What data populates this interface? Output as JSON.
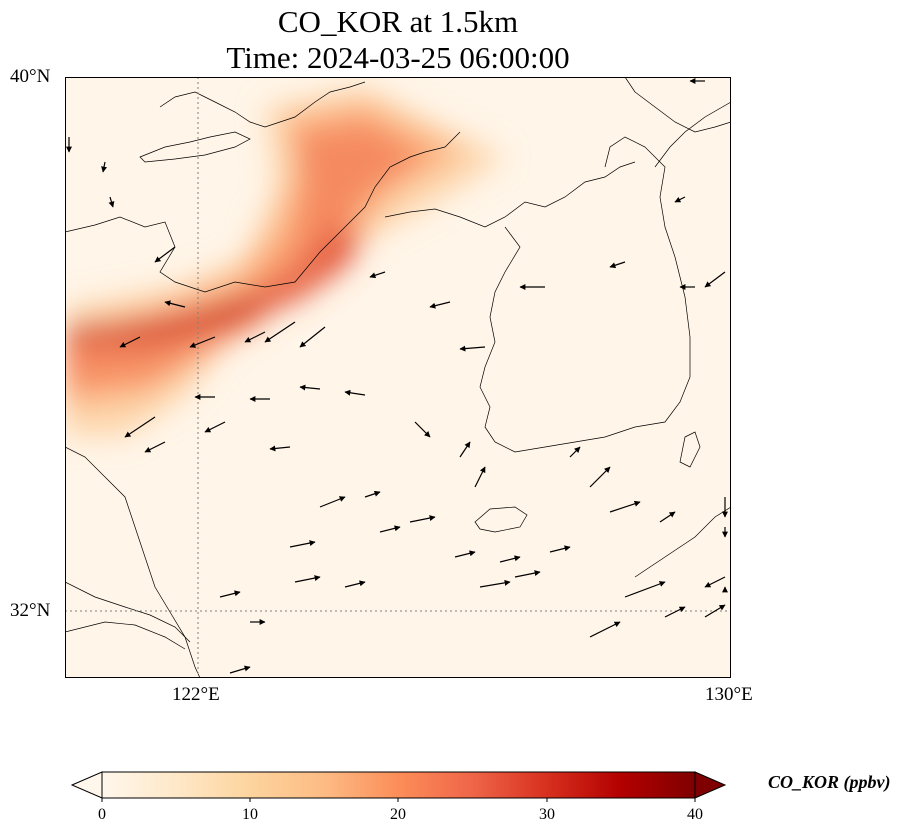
{
  "title": {
    "line1": "CO_KOR at 1.5km",
    "line2": "Time: 2024-03-25 06:00:00"
  },
  "map": {
    "lon_range": [
      120,
      130
    ],
    "lat_range": [
      31,
      40
    ],
    "lat_ticks": [
      {
        "value": 40,
        "label": "40°N"
      },
      {
        "value": 32,
        "label": "32°N"
      }
    ],
    "lon_ticks": [
      {
        "value": 122,
        "label": "122°E"
      },
      {
        "value": 130,
        "label": "130°E"
      }
    ],
    "gridlines": "dotted",
    "features": [
      "coastlines",
      "wind-vectors"
    ]
  },
  "colorbar": {
    "label": "CO_KOR (ppbv)",
    "min": 0,
    "max": 40,
    "extend": "both",
    "ticks": [
      {
        "value": 0,
        "label": "0"
      },
      {
        "value": 10,
        "label": "10"
      },
      {
        "value": 20,
        "label": "20"
      },
      {
        "value": 30,
        "label": "30"
      },
      {
        "value": 40,
        "label": "40"
      }
    ],
    "colormap": "OrRd",
    "colors": [
      "#fff7ec",
      "#fee8c8",
      "#fdd49e",
      "#fdbb84",
      "#fc8d59",
      "#ef6548",
      "#d7301f",
      "#b30000",
      "#7f0000"
    ]
  }
}
